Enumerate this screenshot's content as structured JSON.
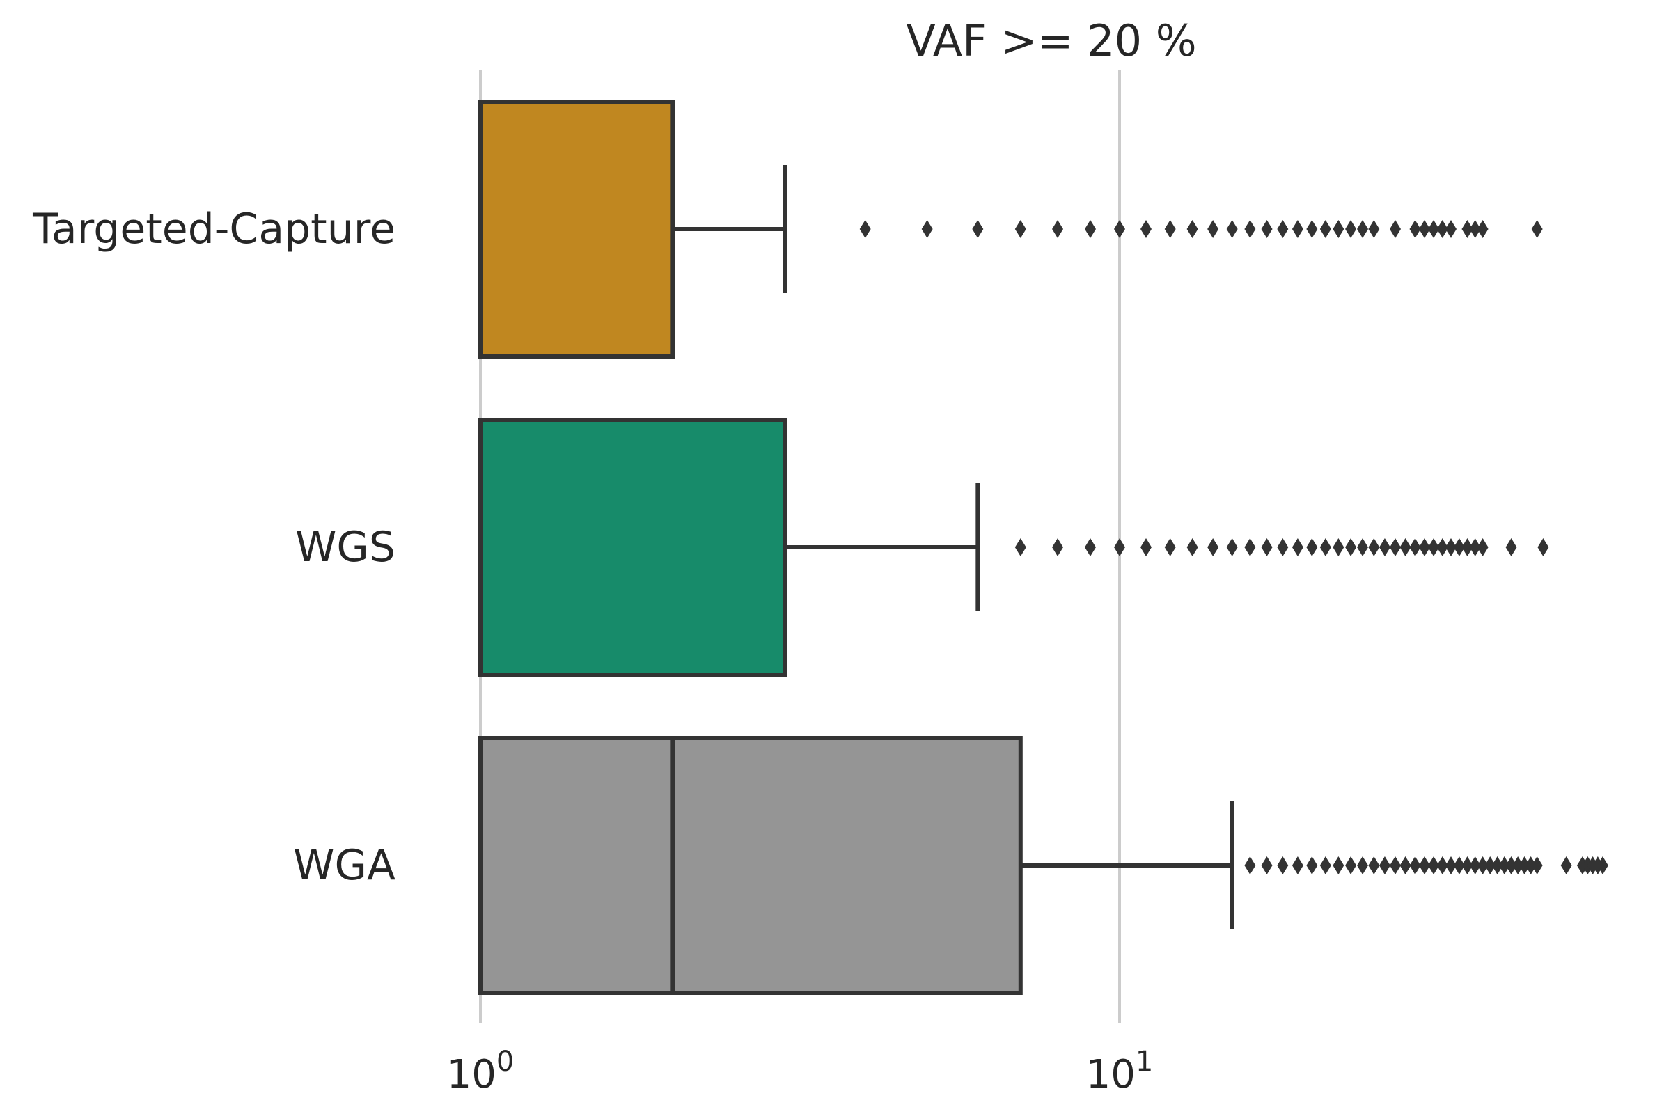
{
  "chart_data": {
    "type": "boxplot",
    "orientation": "horizontal",
    "title": "VAF >= 20 %",
    "xscale": "log",
    "xlim": [
      0.87,
      69
    ],
    "xticks": [
      {
        "value": 1,
        "base": "10",
        "exp": "0"
      },
      {
        "value": 10,
        "base": "10",
        "exp": "1"
      }
    ],
    "grid": "x",
    "categories": [
      "Targeted-Capture",
      "WGS",
      "WGA"
    ],
    "series": [
      {
        "category": "Targeted-Capture",
        "color": "#c08720",
        "whisker_low": 1,
        "q1": 1,
        "median": 1,
        "q3": 2,
        "whisker_high": 3,
        "fliers": [
          4,
          5,
          6,
          7,
          8,
          9,
          10,
          11,
          12,
          13,
          14,
          15,
          16,
          17,
          18,
          19,
          20,
          21,
          22,
          23,
          24,
          25,
          27,
          29,
          30,
          31,
          32,
          33,
          35,
          36,
          37,
          45
        ]
      },
      {
        "category": "WGS",
        "color": "#178b6a",
        "whisker_low": 1,
        "q1": 1,
        "median": 1,
        "q3": 3,
        "whisker_high": 6,
        "fliers": [
          7,
          8,
          9,
          10,
          11,
          12,
          13,
          14,
          15,
          16,
          17,
          18,
          19,
          20,
          21,
          22,
          23,
          24,
          25,
          26,
          27,
          28,
          29,
          30,
          31,
          32,
          33,
          34,
          35,
          36,
          37,
          41,
          46
        ]
      },
      {
        "category": "WGA",
        "color": "#959595",
        "whisker_low": 1,
        "q1": 1,
        "median": 2,
        "q3": 7,
        "whisker_high": 15,
        "fliers": [
          16,
          17,
          18,
          19,
          20,
          21,
          22,
          23,
          24,
          25,
          26,
          27,
          28,
          29,
          30,
          31,
          32,
          33,
          34,
          35,
          36,
          37,
          38,
          39,
          40,
          41,
          42,
          43,
          44,
          45,
          50,
          53,
          54,
          55,
          56,
          57
        ]
      }
    ]
  }
}
